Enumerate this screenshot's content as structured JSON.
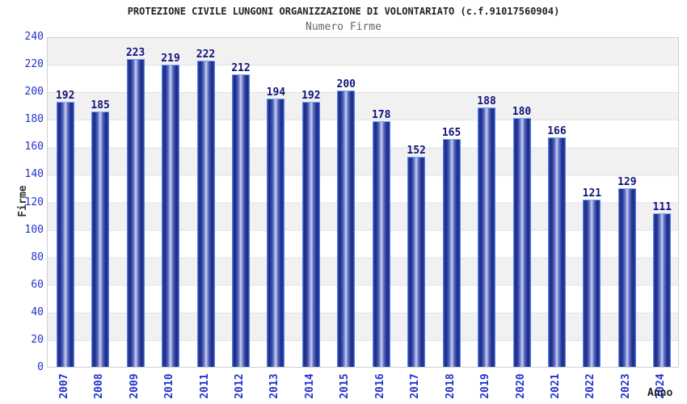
{
  "header": {
    "title": "PROTEZIONE CIVILE LUNGONI ORGANIZZAZIONE DI VOLONTARIATO (c.f.91017560904)",
    "subtitle": "Numero Firme"
  },
  "chart_data": {
    "type": "bar",
    "title": "Numero Firme",
    "categories": [
      "2007",
      "2008",
      "2009",
      "2010",
      "2011",
      "2012",
      "2013",
      "2014",
      "2015",
      "2016",
      "2017",
      "2018",
      "2019",
      "2020",
      "2021",
      "2022",
      "2023",
      "2024"
    ],
    "values": [
      192,
      185,
      223,
      219,
      222,
      212,
      194,
      192,
      200,
      178,
      152,
      165,
      188,
      180,
      166,
      121,
      129,
      111
    ],
    "xlabel": "Anno",
    "ylabel": "Firme",
    "ylim": [
      0,
      240
    ],
    "ytick_step": 20,
    "yticks": [
      0,
      20,
      40,
      60,
      80,
      100,
      120,
      140,
      160,
      180,
      200,
      220,
      240
    ],
    "grid": true,
    "legend": "none",
    "bar_orientation": "vertical",
    "band_fill": "alternating gray/white horizontal bands"
  },
  "colors": {
    "tick_label": "#2233cc",
    "bar_value_label": "#11127a",
    "bar_dark": "#1b2780",
    "bar_highlight": "#ccd2ee",
    "bar_border": "#4f83ea",
    "band_gray": "#f1f1f2",
    "gridline": "#e2e2e2",
    "title": "#222222",
    "subtitle": "#666666"
  }
}
